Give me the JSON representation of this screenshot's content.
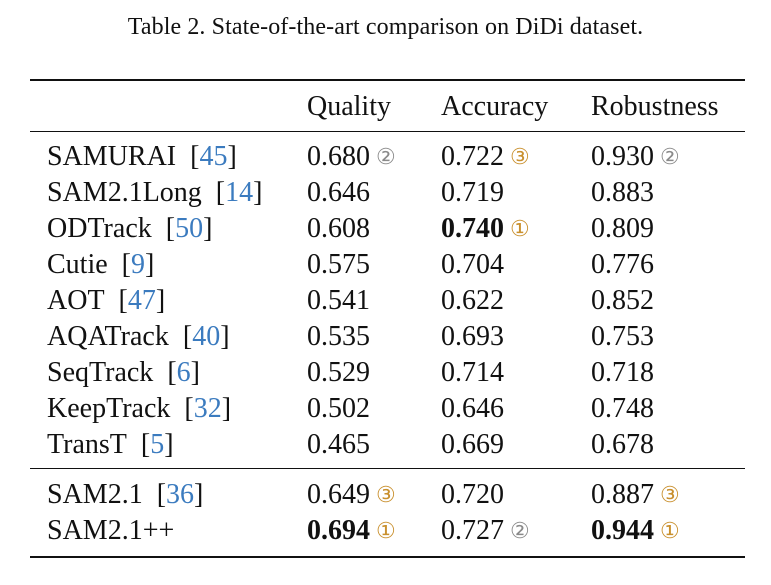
{
  "caption": "Table 2. State-of-the-art comparison on DiDi dataset.",
  "columns": [
    "",
    "Quality",
    "Accuracy",
    "Robustness"
  ],
  "rank_symbols": {
    "1": "①",
    "2": "②",
    "3": "③"
  },
  "rank_colors": {
    "1": "#c9902e",
    "2": "#8a8a8a",
    "3": "#c9902e"
  },
  "cite_color": "#3b7bbf",
  "rows": [
    {
      "method": "SAMURAI",
      "cite": "45",
      "quality": {
        "value": "0.680",
        "rank": 2
      },
      "accuracy": {
        "value": "0.722",
        "rank": 3
      },
      "robustness": {
        "value": "0.930",
        "rank": 2
      }
    },
    {
      "method": "SAM2.1Long",
      "cite": "14",
      "quality": {
        "value": "0.646"
      },
      "accuracy": {
        "value": "0.719"
      },
      "robustness": {
        "value": "0.883"
      }
    },
    {
      "method": "ODTrack",
      "cite": "50",
      "quality": {
        "value": "0.608"
      },
      "accuracy": {
        "value": "0.740",
        "bold": true,
        "rank": 1
      },
      "robustness": {
        "value": "0.809"
      }
    },
    {
      "method": "Cutie",
      "cite": "9",
      "quality": {
        "value": "0.575"
      },
      "accuracy": {
        "value": "0.704"
      },
      "robustness": {
        "value": "0.776"
      }
    },
    {
      "method": "AOT",
      "cite": "47",
      "quality": {
        "value": "0.541"
      },
      "accuracy": {
        "value": "0.622"
      },
      "robustness": {
        "value": "0.852"
      }
    },
    {
      "method": "AQATrack",
      "cite": "40",
      "quality": {
        "value": "0.535"
      },
      "accuracy": {
        "value": "0.693"
      },
      "robustness": {
        "value": "0.753"
      }
    },
    {
      "method": "SeqTrack",
      "cite": "6",
      "quality": {
        "value": "0.529"
      },
      "accuracy": {
        "value": "0.714"
      },
      "robustness": {
        "value": "0.718"
      }
    },
    {
      "method": "KeepTrack",
      "cite": "32",
      "quality": {
        "value": "0.502"
      },
      "accuracy": {
        "value": "0.646"
      },
      "robustness": {
        "value": "0.748"
      }
    },
    {
      "method": "TransT",
      "cite": "5",
      "quality": {
        "value": "0.465"
      },
      "accuracy": {
        "value": "0.669"
      },
      "robustness": {
        "value": "0.678"
      }
    },
    {
      "method": "SAM2.1",
      "cite": "36",
      "quality": {
        "value": "0.649",
        "rank": 3
      },
      "accuracy": {
        "value": "0.720"
      },
      "robustness": {
        "value": "0.887",
        "rank": 3
      }
    },
    {
      "method": "SAM2.1++",
      "cite": "",
      "quality": {
        "value": "0.694",
        "bold": true,
        "rank": 1
      },
      "accuracy": {
        "value": "0.727",
        "rank": 2
      },
      "robustness": {
        "value": "0.944",
        "bold": true,
        "rank": 1
      }
    }
  ]
}
